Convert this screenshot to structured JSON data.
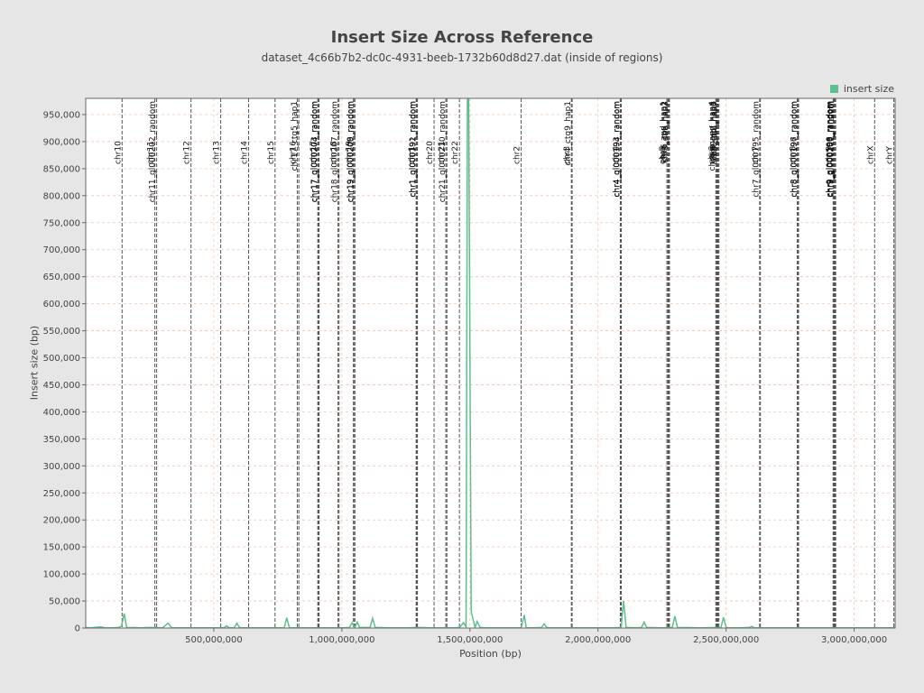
{
  "chart_data": {
    "type": "line",
    "title": "Insert Size Across Reference",
    "subtitle": "dataset_4c66b7b2-dc0c-4931-beeb-1732b60d8d27.dat (inside of regions)",
    "xlabel": "Position (bp)",
    "ylabel": "Insert size (bp)",
    "xlim": [
      0,
      3160000000
    ],
    "ylim": [
      0,
      980000
    ],
    "x_ticks": [
      {
        "value": 500000000,
        "label": "500,000,000"
      },
      {
        "value": 1000000000,
        "label": "1,000,000,000"
      },
      {
        "value": 1500000000,
        "label": "1,500,000,000"
      },
      {
        "value": 2000000000,
        "label": "2,000,000,000"
      },
      {
        "value": 2500000000,
        "label": "2,500,000,000"
      },
      {
        "value": 3000000000,
        "label": "3,000,000,000"
      }
    ],
    "y_ticks": [
      {
        "value": 0,
        "label": "0"
      },
      {
        "value": 50000,
        "label": "50,000"
      },
      {
        "value": 100000,
        "label": "100,000"
      },
      {
        "value": 150000,
        "label": "150,000"
      },
      {
        "value": 200000,
        "label": "200,000"
      },
      {
        "value": 250000,
        "label": "250,000"
      },
      {
        "value": 300000,
        "label": "300,000"
      },
      {
        "value": 350000,
        "label": "350,000"
      },
      {
        "value": 400000,
        "label": "400,000"
      },
      {
        "value": 450000,
        "label": "450,000"
      },
      {
        "value": 500000,
        "label": "500,000"
      },
      {
        "value": 550000,
        "label": "550,000"
      },
      {
        "value": 600000,
        "label": "600,000"
      },
      {
        "value": 650000,
        "label": "650,000"
      },
      {
        "value": 700000,
        "label": "700,000"
      },
      {
        "value": 750000,
        "label": "750,000"
      },
      {
        "value": 800000,
        "label": "800,000"
      },
      {
        "value": 850000,
        "label": "850,000"
      },
      {
        "value": 900000,
        "label": "900,000"
      },
      {
        "value": 950000,
        "label": "950,000"
      }
    ],
    "grid": true,
    "legend": {
      "position": "top-right",
      "entries": [
        "insert size"
      ]
    },
    "series": [
      {
        "name": "insert size",
        "color": "#5cc08c",
        "x": [
          0,
          20000000,
          40000000,
          60000000,
          75000000,
          100000000,
          130000000,
          140000000,
          150000000,
          160000000,
          172000000,
          185000000,
          210000000,
          250000000,
          300000000,
          322000000,
          335000000,
          400000000,
          450000000,
          500000000,
          540000000,
          550000000,
          560000000,
          580000000,
          590000000,
          600000000,
          610000000,
          650000000,
          700000000,
          750000000,
          775000000,
          785000000,
          795000000,
          850000000,
          900000000,
          950000000,
          1000000000,
          1030000000,
          1040000000,
          1050000000,
          1060000000,
          1070000000,
          1080000000,
          1110000000,
          1120000000,
          1130000000,
          1200000000,
          1250000000,
          1300000000,
          1350000000,
          1400000000,
          1440000000,
          1460000000,
          1475000000,
          1485000000,
          1490000000,
          1495000000,
          1505000000,
          1520000000,
          1528000000,
          1540000000,
          1560000000,
          1600000000,
          1650000000,
          1700000000,
          1712000000,
          1720000000,
          1750000000,
          1780000000,
          1790000000,
          1800000000,
          1810000000,
          1850000000,
          1900000000,
          1950000000,
          2000000000,
          2050000000,
          2090000000,
          2100000000,
          2110000000,
          2150000000,
          2170000000,
          2180000000,
          2190000000,
          2250000000,
          2290000000,
          2300000000,
          2310000000,
          2400000000,
          2480000000,
          2490000000,
          2500000000,
          2510000000,
          2550000000,
          2590000000,
          2600000000,
          2610000000,
          2700000000,
          2800000000,
          2900000000,
          3000000000,
          3100000000,
          3160000000
        ],
        "values": [
          1000,
          500,
          1500,
          2000,
          500,
          500,
          1000,
          4000,
          27000,
          1000,
          500,
          1000,
          500,
          1000,
          500,
          9000,
          500,
          500,
          500,
          500,
          500,
          4000,
          500,
          500,
          9000,
          1000,
          500,
          500,
          500,
          500,
          500,
          19000,
          500,
          500,
          500,
          500,
          500,
          1000,
          10000,
          500,
          11000,
          500,
          1000,
          1000,
          18000,
          1000,
          500,
          500,
          1000,
          500,
          500,
          500,
          1000,
          10000,
          2000,
          980000,
          980000,
          30000,
          1000,
          12000,
          1000,
          500,
          500,
          500,
          500,
          24000,
          500,
          500,
          1000,
          8000,
          1000,
          500,
          500,
          500,
          500,
          500,
          500,
          1000,
          50000,
          1000,
          500,
          1000,
          11000,
          1000,
          500,
          1000,
          22000,
          1000,
          500,
          1000,
          20000,
          1000,
          500,
          500,
          1000,
          3000,
          500,
          500,
          500,
          500,
          500,
          500,
          500
        ]
      }
    ],
    "region_markers": [
      {
        "x": 142000000,
        "label": "chr10",
        "top": false
      },
      {
        "x": 270000000,
        "label": "chr11",
        "top": false
      },
      {
        "x": 277000000,
        "label": "chr11_gl000202_random",
        "top": true
      },
      {
        "x": 411000000,
        "label": "chr12",
        "top": false
      },
      {
        "x": 527000000,
        "label": "chr13",
        "top": false
      },
      {
        "x": 636000000,
        "label": "chr14",
        "top": false
      },
      {
        "x": 739000000,
        "label": "chr15",
        "top": false
      },
      {
        "x": 826000000,
        "label": "chr16",
        "top": false
      },
      {
        "x": 832000000,
        "label": "chr17_ctg5_hap1",
        "top": true
      },
      {
        "x": 906000000,
        "label": "chr17",
        "top": false
      },
      {
        "x": 909000000,
        "label": "chr17_gl000203_random",
        "top": true
      },
      {
        "x": 911000000,
        "label": "chr17_gl000204_random",
        "top": true
      },
      {
        "x": 985000000,
        "label": "chr18",
        "top": false
      },
      {
        "x": 989000000,
        "label": "chr18_gl000207_random",
        "top": true
      },
      {
        "x": 1045000000,
        "label": "chr19",
        "top": false
      },
      {
        "x": 1049000000,
        "label": "chr19_gl000208_random",
        "top": true
      },
      {
        "x": 1051000000,
        "label": "chr19_gl000209_random",
        "top": true
      },
      {
        "x": 1290000000,
        "label": "chr1",
        "top": false
      },
      {
        "x": 1293000000,
        "label": "chr1_gl000191_random",
        "top": true
      },
      {
        "x": 1295000000,
        "label": "chr1_gl000192_random",
        "top": true
      },
      {
        "x": 1360000000,
        "label": "chr20",
        "top": false
      },
      {
        "x": 1406000000,
        "label": "chr21",
        "top": false
      },
      {
        "x": 1410000000,
        "label": "chr21_gl000210_random",
        "top": true
      },
      {
        "x": 1459000000,
        "label": "chr22",
        "top": false
      },
      {
        "x": 1700000000,
        "label": "chr2",
        "top": false
      },
      {
        "x": 1896000000,
        "label": "chr3",
        "top": false
      },
      {
        "x": 1899000000,
        "label": "chr4_ctg9_hap1",
        "top": true
      },
      {
        "x": 2087000000,
        "label": "chr4",
        "top": false
      },
      {
        "x": 2089000000,
        "label": "chr4_gl000193_random",
        "top": true
      },
      {
        "x": 2091000000,
        "label": "chr4_gl000194_random",
        "top": true
      },
      {
        "x": 2269000000,
        "label": "chr5",
        "top": false
      },
      {
        "x": 2273000000,
        "label": "chr6_apd_hap1",
        "top": true
      },
      {
        "x": 2276000000,
        "label": "chr6_cox_hap2",
        "top": true
      },
      {
        "x": 2279000000,
        "label": "chr6_dbb_hap3",
        "top": true
      },
      {
        "x": 2460000000,
        "label": "chr6",
        "top": false
      },
      {
        "x": 2463000000,
        "label": "chr6_mann_hap4",
        "top": true
      },
      {
        "x": 2466000000,
        "label": "chr6_mcf_hap5",
        "top": true
      },
      {
        "x": 2469000000,
        "label": "chr6_qbl_hap6",
        "top": true
      },
      {
        "x": 2472000000,
        "label": "chr6_ssto_hap7",
        "top": true
      },
      {
        "x": 2631000000,
        "label": "chr7",
        "top": false
      },
      {
        "x": 2634000000,
        "label": "chr7_gl000195_random",
        "top": true
      },
      {
        "x": 2778000000,
        "label": "chr8",
        "top": false
      },
      {
        "x": 2781000000,
        "label": "chr8_gl000196_random",
        "top": true
      },
      {
        "x": 2783000000,
        "label": "chr8_gl000197_random",
        "top": true
      },
      {
        "x": 2918000000,
        "label": "chr9",
        "top": false
      },
      {
        "x": 2920000000,
        "label": "chr9_gl000198_random",
        "top": true
      },
      {
        "x": 2922000000,
        "label": "chr9_gl000199_random",
        "top": true
      },
      {
        "x": 2924000000,
        "label": "chr9_gl000200_random",
        "top": true
      },
      {
        "x": 2926000000,
        "label": "chr9_gl000201_random",
        "top": true
      },
      {
        "x": 2928000000,
        "label": "chrM",
        "top": true
      },
      {
        "x": 3080000000,
        "label": "chrX",
        "top": false
      },
      {
        "x": 3155000000,
        "label": "chrY",
        "top": false
      }
    ]
  }
}
